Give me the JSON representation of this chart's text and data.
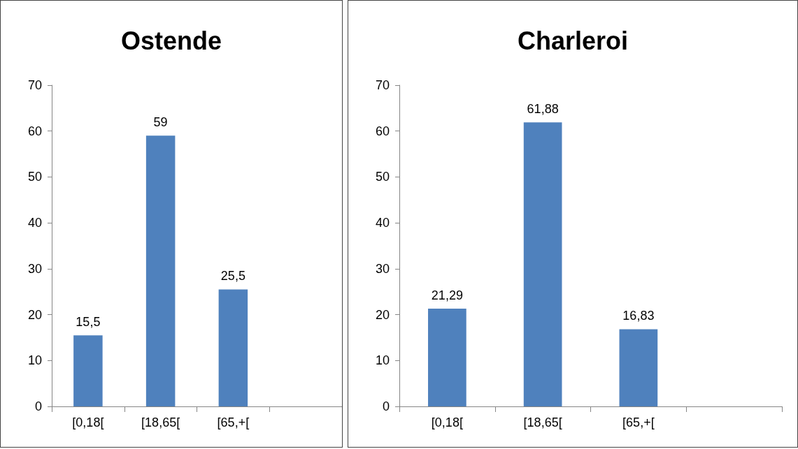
{
  "chart_data": [
    {
      "type": "bar",
      "title": "Ostende",
      "categories": [
        "[0,18[",
        "[18,65[",
        "[65,+[",
        null
      ],
      "values": [
        15.5,
        59,
        25.5,
        null
      ],
      "value_labels": [
        "15,5",
        "59",
        "25,5",
        null
      ],
      "color": "#4f81bd",
      "ylim": [
        0,
        70
      ],
      "yticks": [
        0,
        10,
        20,
        30,
        40,
        50,
        60,
        70
      ],
      "grid": false
    },
    {
      "type": "bar",
      "title": "Charleroi",
      "categories": [
        "[0,18[",
        "[18,65[",
        "[65,+[",
        null
      ],
      "values": [
        21.29,
        61.88,
        16.83,
        null
      ],
      "value_labels": [
        "21,29",
        "61,88",
        "16,83",
        null
      ],
      "color": "#4f81bd",
      "ylim": [
        0,
        70
      ],
      "yticks": [
        0,
        10,
        20,
        30,
        40,
        50,
        60,
        70
      ],
      "grid": false
    }
  ]
}
